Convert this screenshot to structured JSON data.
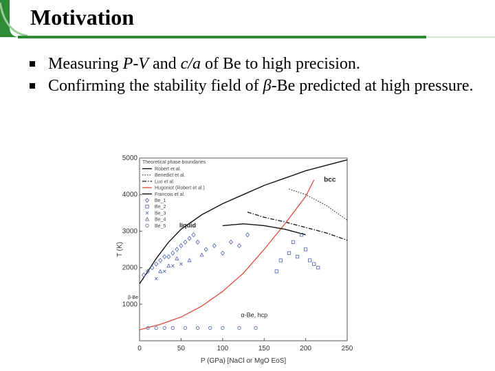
{
  "slide": {
    "title": "Motivation",
    "colors": {
      "accent_green": "#2e8a35",
      "bullet": "#000000"
    },
    "bullets": [
      {
        "pre": "Measuring ",
        "em1": "P-V",
        "mid": " and ",
        "em2": "c/a",
        "post": " of Be to high precision."
      },
      {
        "pre": "Confirming the stability field of ",
        "greek": "β",
        "post": "-Be predicted at high pressure."
      }
    ]
  },
  "chart_data": {
    "type": "scatter",
    "xlabel": "P (GPa) [NaCl or MgO EoS]",
    "ylabel": "T (K)",
    "xlim": [
      0,
      250
    ],
    "ylim": [
      0,
      5000
    ],
    "x_ticks": [
      "0",
      "50",
      "100",
      "150",
      "200",
      "250"
    ],
    "y_ticks": [
      "1000",
      "2000",
      "3000",
      "4000",
      "5000"
    ],
    "legend": {
      "title": "Theoretical phase boundaries",
      "entries": [
        "Robert et al.",
        "Benedict et al.",
        "Luo et al.",
        "Hugoniot (Robert et al.)",
        "Francois et al.",
        "Be_1",
        "Be_2",
        "Be_3",
        "Be_4",
        "Be_5"
      ]
    },
    "annotations": [
      "bcc",
      "liquid",
      "α-Be, hcp",
      "β-Be"
    ],
    "series": [
      {
        "name": "Robert et al.",
        "style": "solid",
        "x": [
          0,
          10,
          20,
          35,
          50,
          75,
          100,
          125,
          150,
          175,
          200,
          225,
          250
        ],
        "y": [
          1560,
          1900,
          2250,
          2700,
          3050,
          3450,
          3750,
          4000,
          4250,
          4450,
          4650,
          4800,
          4950
        ]
      },
      {
        "name": "Benedict et al.",
        "style": "dotted",
        "x": [
          180,
          200,
          225,
          250
        ],
        "y": [
          4150,
          4000,
          3700,
          3300
        ]
      },
      {
        "name": "Luo et al.",
        "style": "dashdot",
        "x": [
          130,
          150,
          175,
          200,
          225,
          250
        ],
        "y": [
          3520,
          3380,
          3250,
          3100,
          2950,
          2750
        ]
      },
      {
        "name": "Hugoniot (Robert et al.)",
        "style": "solid-red",
        "x": [
          0,
          25,
          50,
          75,
          100,
          125,
          150,
          175,
          200,
          210
        ],
        "y": [
          300,
          450,
          650,
          950,
          1350,
          1850,
          2500,
          3200,
          3950,
          4400
        ]
      },
      {
        "name": "Francois et al.",
        "style": "solid",
        "x": [
          100,
          125,
          150,
          175,
          200
        ],
        "y": [
          3150,
          3200,
          3150,
          3050,
          2900
        ]
      },
      {
        "name": "Be_1",
        "marker": "diamond",
        "x": [
          5,
          10,
          15,
          20,
          25,
          30,
          35,
          40,
          45,
          50,
          55,
          60,
          65,
          70,
          80,
          90,
          100,
          110,
          120,
          130
        ],
        "y": [
          1800,
          1900,
          2000,
          2100,
          2200,
          2300,
          2300,
          2400,
          2500,
          2600,
          2700,
          2800,
          2900,
          2700,
          2500,
          2600,
          2400,
          2700,
          2600,
          2900
        ]
      },
      {
        "name": "Be_2",
        "marker": "square",
        "x": [
          165,
          170,
          180,
          185,
          190,
          195,
          200,
          205,
          210,
          215
        ],
        "y": [
          1900,
          2200,
          2400,
          2700,
          2300,
          2900,
          2500,
          2200,
          2100,
          2000
        ]
      },
      {
        "name": "Be_3",
        "marker": "x",
        "x": [
          20,
          30,
          40,
          50
        ],
        "y": [
          1700,
          1900,
          2050,
          2100
        ]
      },
      {
        "name": "Be_4",
        "marker": "triangle",
        "x": [
          25,
          35,
          45,
          60,
          75
        ],
        "y": [
          1900,
          2050,
          2250,
          2200,
          2350
        ]
      },
      {
        "name": "Be_5",
        "marker": "circle",
        "x": [
          10,
          20,
          30,
          40,
          55,
          70,
          85,
          100,
          120,
          140
        ],
        "y": [
          350,
          350,
          350,
          350,
          350,
          350,
          350,
          350,
          350,
          350
        ]
      }
    ]
  }
}
